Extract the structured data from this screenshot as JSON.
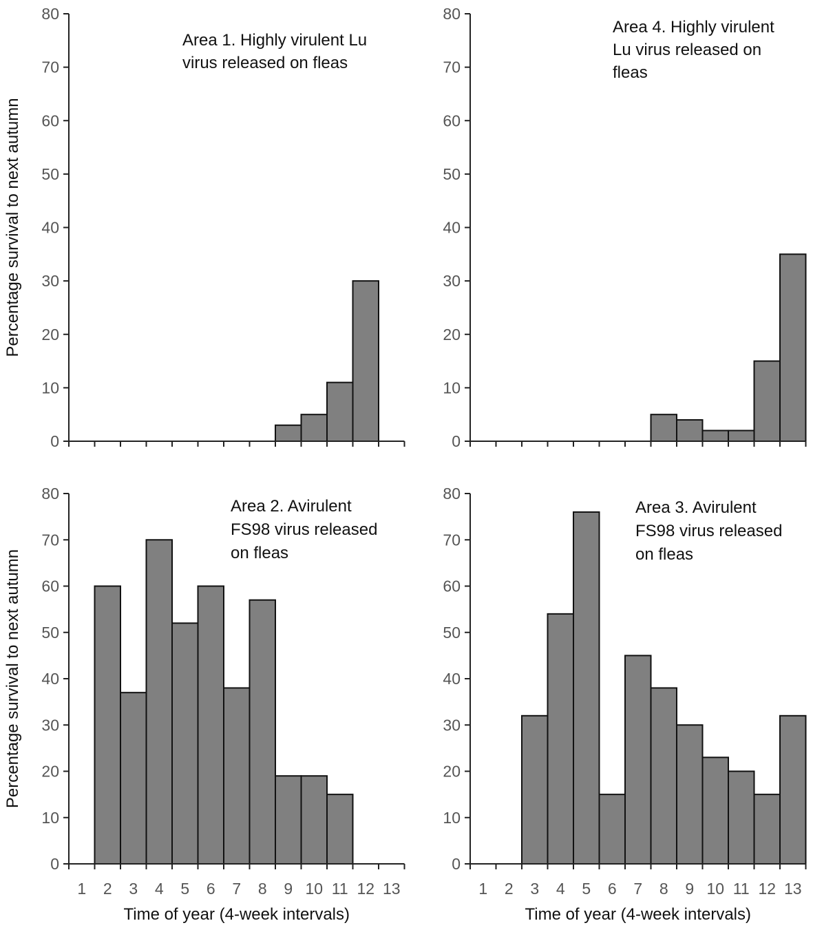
{
  "shared": {
    "ylabel": "Percentage survival to next autumn",
    "xlabel": "Time of year (4-week intervals)",
    "y_ticks": [
      "0",
      "10",
      "20",
      "30",
      "40",
      "50",
      "60",
      "70",
      "80"
    ],
    "x_ticks": [
      "1",
      "2",
      "3",
      "4",
      "5",
      "6",
      "7",
      "8",
      "9",
      "10",
      "11",
      "12",
      "13"
    ],
    "bar_color": "#808080"
  },
  "chart_data": [
    {
      "type": "bar",
      "annotation": [
        "Area 1. Highly virulent Lu",
        "virus released on fleas"
      ],
      "categories": [
        1,
        2,
        3,
        4,
        5,
        6,
        7,
        8,
        9,
        10,
        11,
        12,
        13
      ],
      "values": [
        0,
        0,
        0,
        0,
        0,
        0,
        0,
        0,
        3,
        5,
        11,
        30,
        0
      ],
      "ylabel": "Percentage survival to next autumn",
      "xlabel": "",
      "ylim": [
        0,
        80
      ],
      "show_x_tick_labels": false
    },
    {
      "type": "bar",
      "annotation": [
        "Area 4. Highly virulent",
        "Lu virus released on",
        "fleas"
      ],
      "categories": [
        1,
        2,
        3,
        4,
        5,
        6,
        7,
        8,
        9,
        10,
        11,
        12,
        13
      ],
      "values": [
        0,
        0,
        0,
        0,
        0,
        0,
        0,
        5,
        4,
        2,
        2,
        15,
        35
      ],
      "ylabel": "",
      "xlabel": "",
      "ylim": [
        0,
        80
      ],
      "show_x_tick_labels": false
    },
    {
      "type": "bar",
      "annotation": [
        "Area 2. Avirulent",
        "FS98 virus released",
        "on fleas"
      ],
      "categories": [
        1,
        2,
        3,
        4,
        5,
        6,
        7,
        8,
        9,
        10,
        11,
        12,
        13
      ],
      "values": [
        0,
        60,
        37,
        70,
        52,
        60,
        38,
        57,
        19,
        19,
        15,
        0,
        0
      ],
      "ylabel": "Percentage survival to next autumn",
      "xlabel": "Time of year (4-week intervals)",
      "ylim": [
        0,
        80
      ],
      "show_x_tick_labels": true
    },
    {
      "type": "bar",
      "annotation": [
        "Area 3. Avirulent",
        "FS98 virus released",
        "on fleas"
      ],
      "categories": [
        1,
        2,
        3,
        4,
        5,
        6,
        7,
        8,
        9,
        10,
        11,
        12,
        13
      ],
      "values": [
        0,
        0,
        32,
        54,
        76,
        15,
        45,
        38,
        30,
        23,
        20,
        15,
        32
      ],
      "ylabel": "",
      "xlabel": "Time of year (4-week intervals)",
      "ylim": [
        0,
        80
      ],
      "show_x_tick_labels": true
    }
  ]
}
